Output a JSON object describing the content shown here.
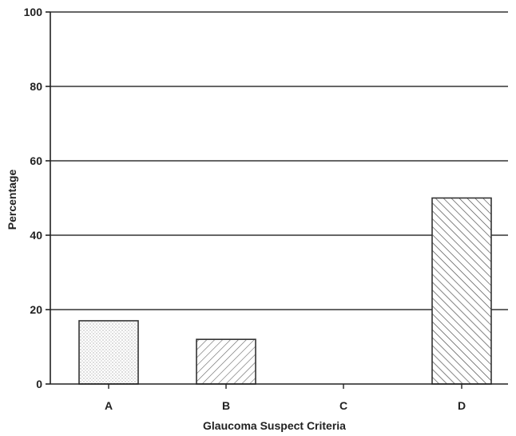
{
  "chart_data": {
    "type": "bar",
    "title": "",
    "xlabel": "Glaucoma Suspect Criteria",
    "ylabel": "Percentage",
    "categories": [
      "A",
      "B",
      "C",
      "D"
    ],
    "values": [
      17,
      12,
      0,
      50
    ],
    "ylim": [
      0,
      100
    ],
    "yticks": [
      0,
      20,
      40,
      60,
      80,
      100
    ],
    "grid": "horizontal",
    "legend": "none",
    "bar_fills": [
      "dotted",
      "hatch-forward",
      "none",
      "hatch-backward"
    ],
    "colors": {
      "bar_stroke": "#333333",
      "grid": "#333333",
      "pattern": "#555555"
    }
  }
}
